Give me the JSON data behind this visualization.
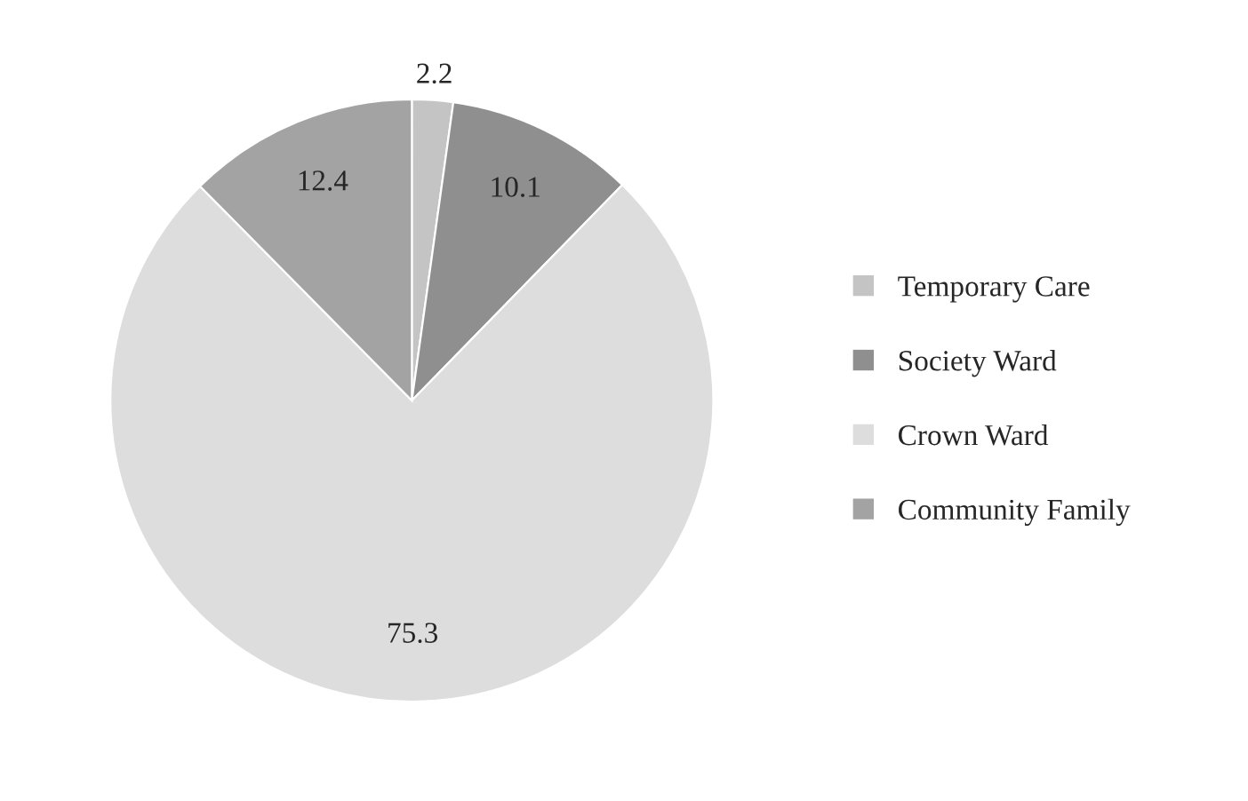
{
  "chart_data": {
    "type": "pie",
    "categories": [
      "Temporary Care",
      "Society Ward",
      "Crown Ward",
      "Community Family"
    ],
    "values": [
      2.2,
      10.1,
      75.3,
      12.4
    ],
    "colors": [
      "#c4c4c4",
      "#8f8f8f",
      "#dddddd",
      "#a3a3a3"
    ],
    "data_labels": true,
    "legend": "right"
  }
}
